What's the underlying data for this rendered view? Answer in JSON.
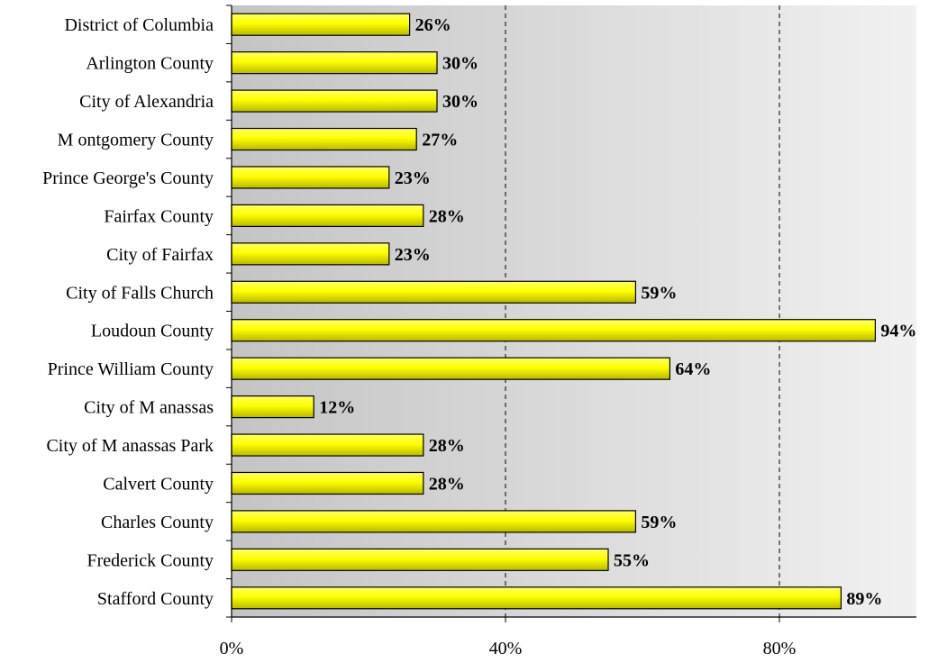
{
  "chart_data": {
    "type": "bar",
    "orientation": "horizontal",
    "categories": [
      "District of Columbia",
      "Arlington County",
      "City of Alexandria",
      "M ontgomery County",
      "Prince George's County",
      "Fairfax County",
      "City of Fairfax",
      "City of Falls Church",
      "Loudoun County",
      "Prince William County",
      "City of M anassas",
      "City of M anassas Park",
      "Calvert County",
      "Charles County",
      "Frederick County",
      "Stafford County"
    ],
    "values": [
      26,
      30,
      30,
      27,
      23,
      28,
      23,
      59,
      94,
      64,
      12,
      28,
      28,
      59,
      55,
      89
    ],
    "value_labels": [
      "26%",
      "30%",
      "30%",
      "27%",
      "23%",
      "28%",
      "23%",
      "59%",
      "94%",
      "64%",
      "12%",
      "28%",
      "28%",
      "59%",
      "55%",
      "89%"
    ],
    "xlim": [
      0,
      100
    ],
    "x_ticks": [
      0,
      40,
      80
    ],
    "x_tick_labels": [
      "0%",
      "40%",
      "80%"
    ],
    "grid": "vertical dashed at ticks",
    "legend": "none",
    "bar_color": "#ffff00",
    "bar_shade_color": "#b8b800",
    "plot_bg_dark": "#c4c4c4",
    "plot_bg_light": "#f1f1f1"
  }
}
